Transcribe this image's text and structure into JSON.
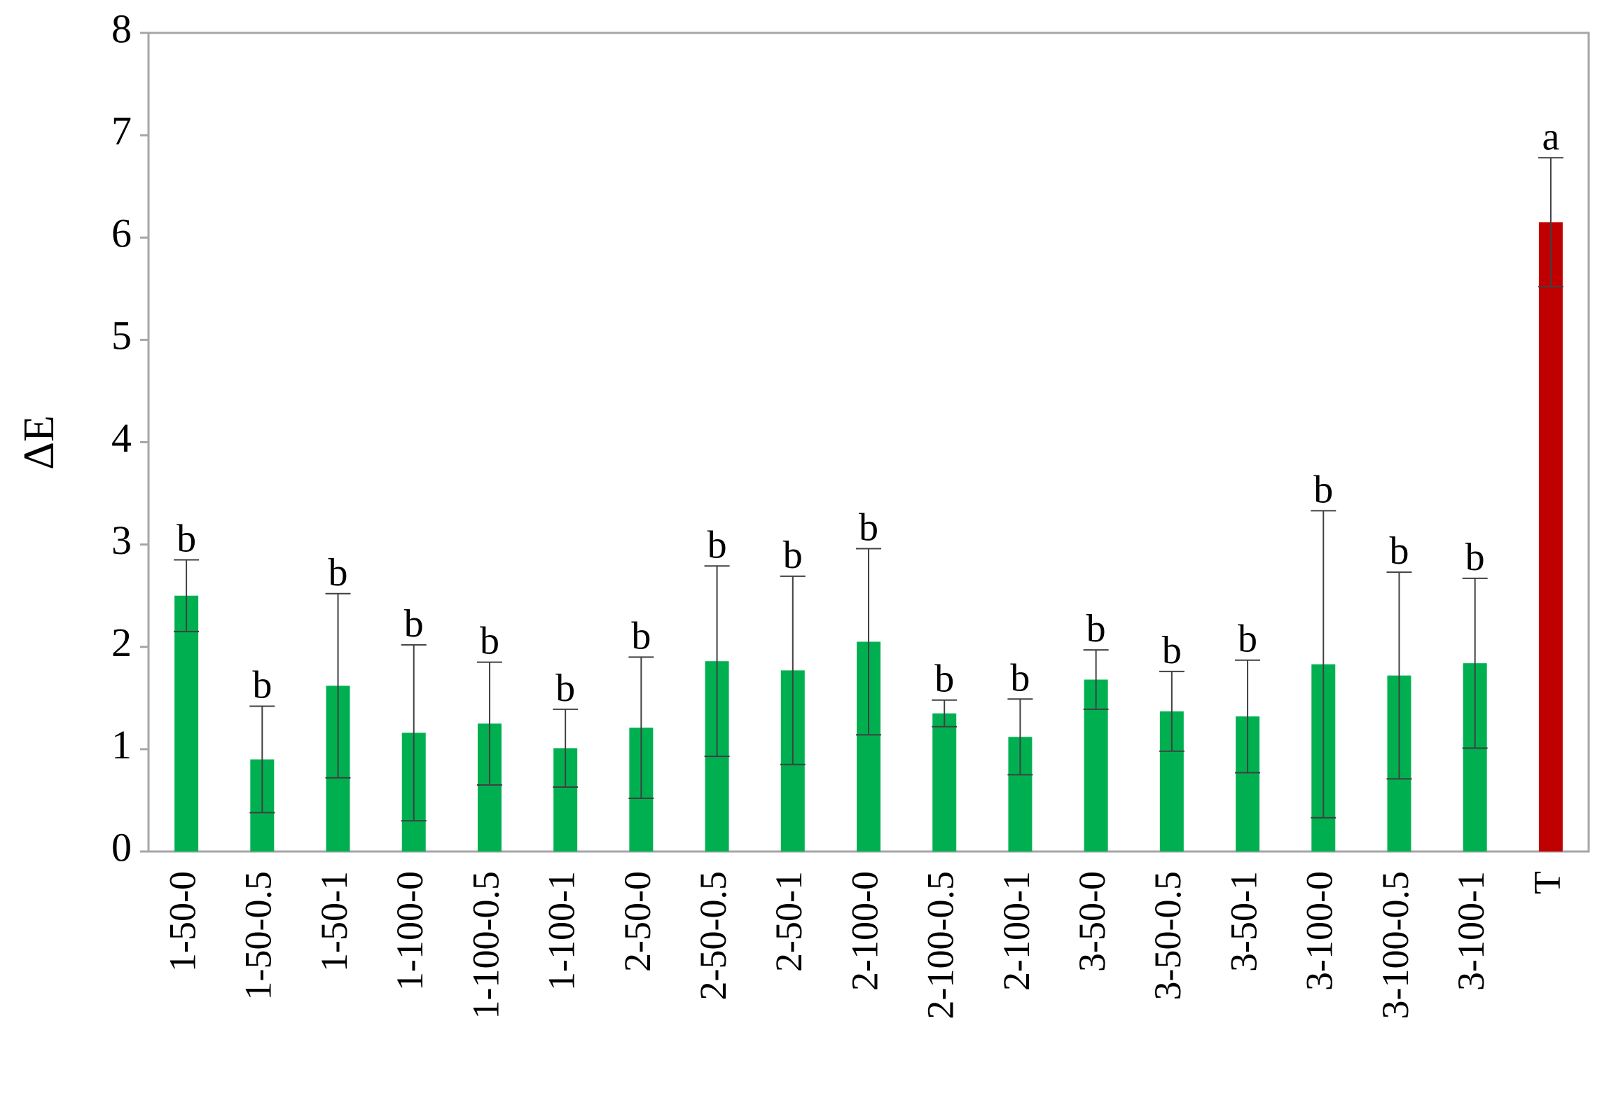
{
  "chart_data": {
    "type": "bar",
    "y_label": "ΔE",
    "categories": [
      "1-50-0",
      "1-50-0.5",
      "1-50-1",
      "1-100-0",
      "1-100-0.5",
      "1-100-1",
      "2-50-0",
      "2-50-0.5",
      "2-50-1",
      "2-100-0",
      "2-100-0.5",
      "2-100-1",
      "3-50-0",
      "3-50-0.5",
      "3-50-1",
      "3-100-0",
      "3-100-0.5",
      "3-100-1",
      "T"
    ],
    "values": [
      2.5,
      0.9,
      1.62,
      1.16,
      1.25,
      1.01,
      1.21,
      1.86,
      1.77,
      2.05,
      1.35,
      1.12,
      1.68,
      1.37,
      1.32,
      1.83,
      1.72,
      1.84,
      6.15
    ],
    "errors": [
      0.35,
      0.52,
      0.9,
      0.86,
      0.6,
      0.38,
      0.69,
      0.93,
      0.92,
      0.91,
      0.13,
      0.37,
      0.29,
      0.39,
      0.55,
      1.5,
      1.01,
      0.83,
      0.63
    ],
    "annotations": [
      "b",
      "b",
      "b",
      "b",
      "b",
      "b",
      "b",
      "b",
      "b",
      "b",
      "b",
      "b",
      "b",
      "b",
      "b",
      "b",
      "b",
      "b",
      "a"
    ],
    "colors": [
      "#00b050",
      "#00b050",
      "#00b050",
      "#00b050",
      "#00b050",
      "#00b050",
      "#00b050",
      "#00b050",
      "#00b050",
      "#00b050",
      "#00b050",
      "#00b050",
      "#00b050",
      "#00b050",
      "#00b050",
      "#00b050",
      "#00b050",
      "#00b050",
      "#c00000"
    ],
    "ylim": [
      0,
      8
    ],
    "yticks": [
      0,
      1,
      2,
      3,
      4,
      5,
      6,
      7,
      8
    ],
    "grid": false
  }
}
